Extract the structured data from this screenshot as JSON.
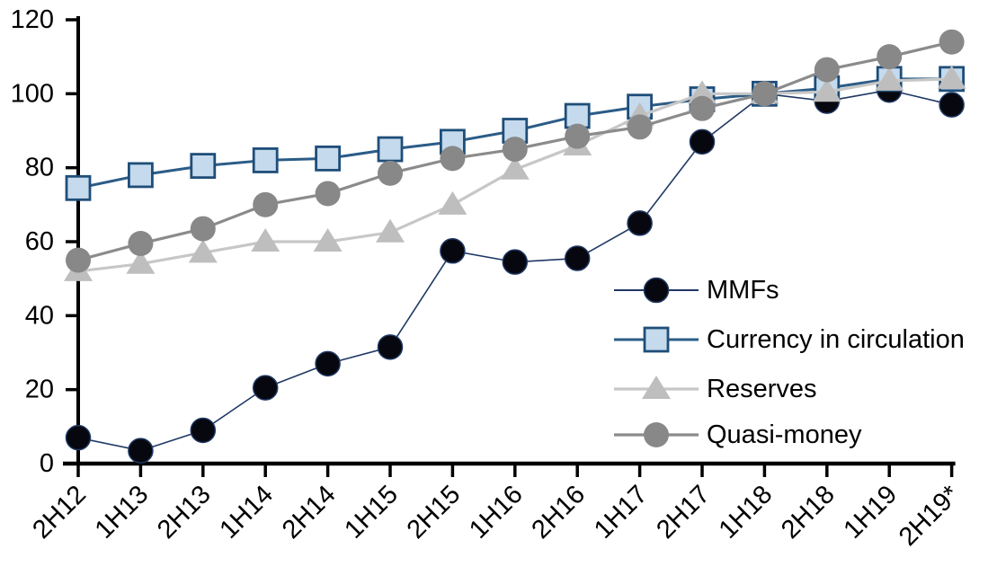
{
  "chart_data": {
    "type": "line",
    "title": "",
    "xlabel": "",
    "ylabel": "",
    "categories": [
      "2H12",
      "1H13",
      "2H13",
      "1H14",
      "2H14",
      "1H15",
      "2H15",
      "1H16",
      "2H16",
      "1H17",
      "2H17",
      "1H18",
      "2H18",
      "1H19",
      "2H19*"
    ],
    "series": [
      {
        "name": "MMFs",
        "marker": "circle",
        "values": [
          7,
          3.5,
          9,
          20.5,
          27,
          31.5,
          57.5,
          54.5,
          55.5,
          65,
          87,
          100,
          98,
          101,
          97
        ],
        "line_color": "#1F3864",
        "line_width": 1.6,
        "marker_fill": "#07070F",
        "marker_stroke": "#1F3864",
        "marker_stroke_width": 1.5,
        "marker_size": 27
      },
      {
        "name": "Currency in circulation",
        "marker": "square",
        "values": [
          74.5,
          78,
          80.5,
          82,
          82.5,
          85,
          87,
          90,
          94,
          96.5,
          98.5,
          100,
          101.5,
          104,
          104
        ],
        "line_color": "#2B5C87",
        "line_width": 3,
        "marker_fill": "#C5DAED",
        "marker_stroke": "#1F4E79",
        "marker_stroke_width": 2.8,
        "marker_size": 26
      },
      {
        "name": "Reserves",
        "marker": "triangle",
        "values": [
          52,
          54,
          57,
          60,
          60,
          62.5,
          70,
          79.5,
          86,
          94,
          100,
          100,
          100.5,
          103.5,
          104
        ],
        "line_color": "#C7C7C7",
        "line_width": 3.2,
        "marker_fill": "#BEBEBE",
        "marker_stroke": "none",
        "marker_stroke_width": 0,
        "marker_size": 28
      },
      {
        "name": "Quasi-money",
        "marker": "circle",
        "values": [
          55,
          59.5,
          63.5,
          70,
          73,
          78.5,
          82.5,
          85,
          88.5,
          91,
          96,
          100,
          106.5,
          110,
          114
        ],
        "line_color": "#8B8B8B",
        "line_width": 3.2,
        "marker_fill": "#888888",
        "marker_stroke": "none",
        "marker_stroke_width": 0,
        "marker_size": 28
      }
    ],
    "ylim": [
      0,
      120
    ],
    "ytick_step": 20,
    "ytick_labels": [
      "0",
      "20",
      "40",
      "60",
      "80",
      "100",
      "120"
    ],
    "grid": false,
    "legend_position": "inside-right",
    "legend_order": [
      "MMFs",
      "Currency in circulation",
      "Reserves",
      "Quasi-money"
    ]
  },
  "colors": {
    "axis": "#000000",
    "text": "#000000",
    "background": "#FFFFFF"
  }
}
